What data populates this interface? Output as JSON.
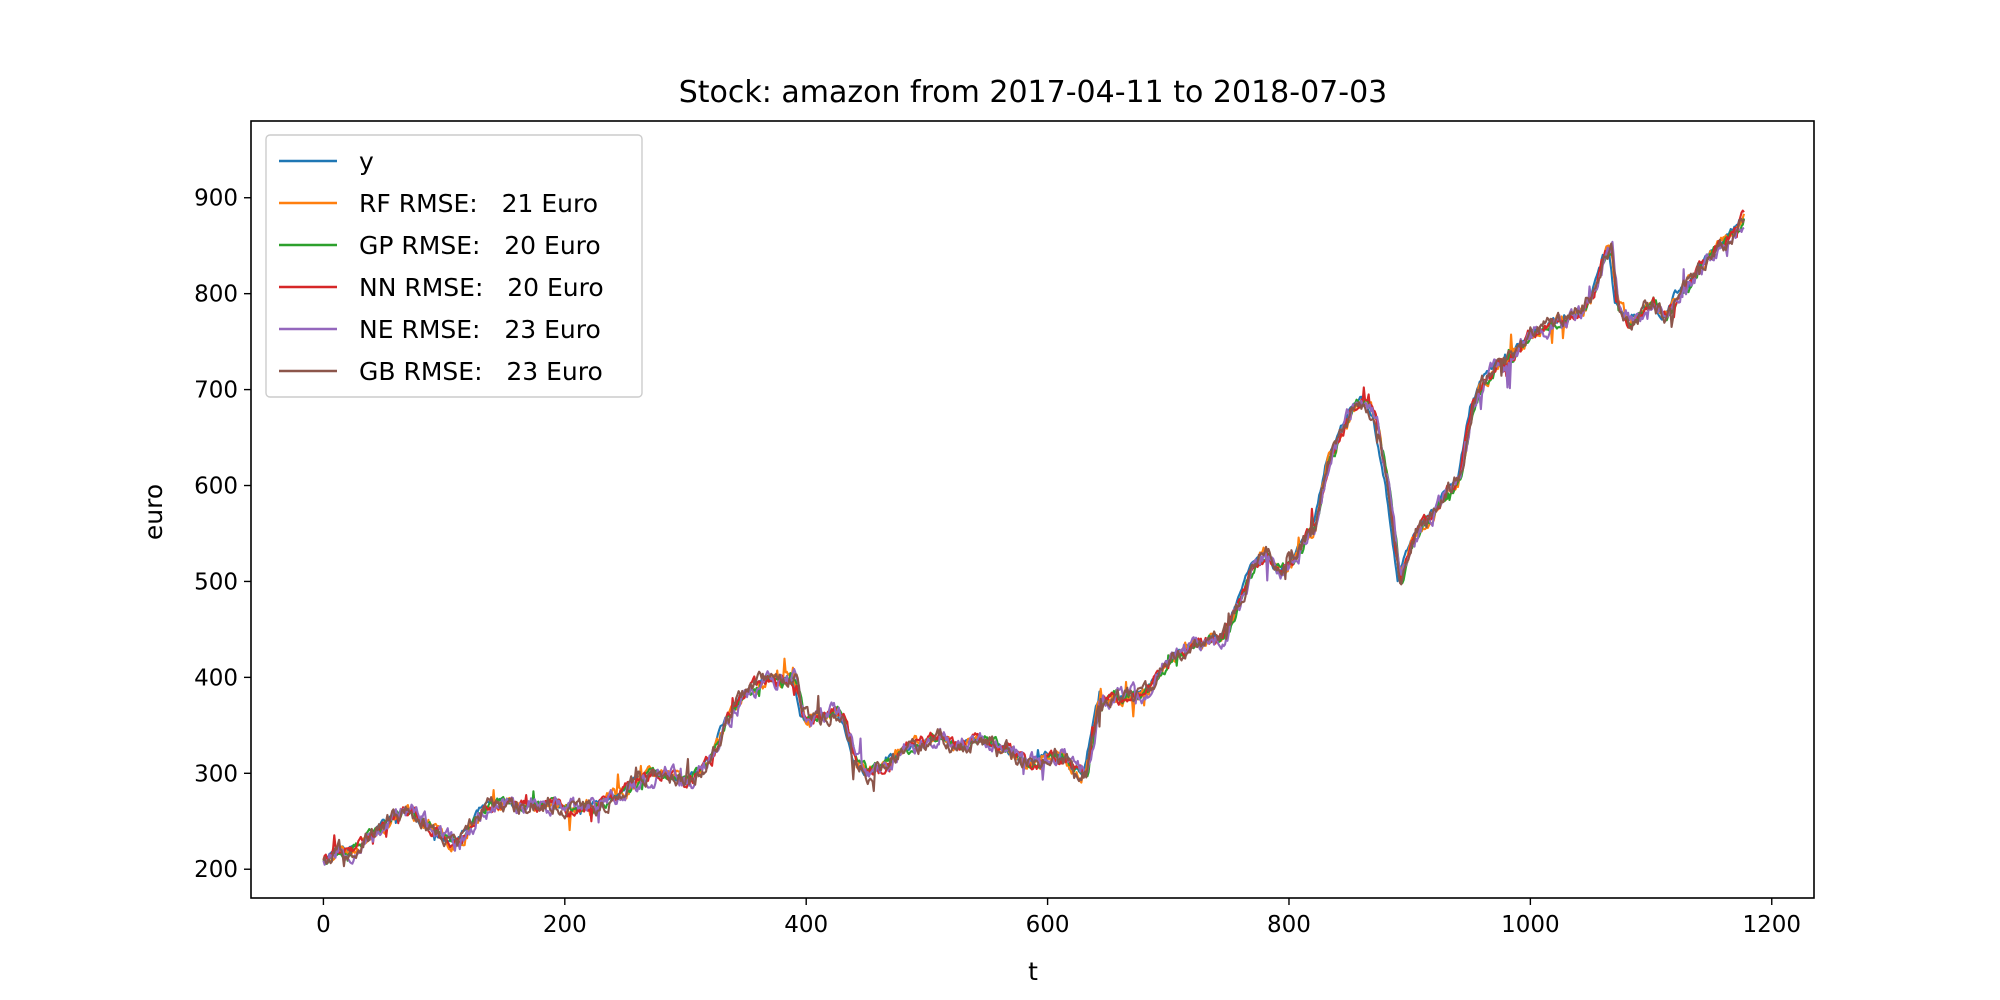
{
  "chart_data": {
    "type": "line",
    "title": "Stock: amazon from 2017-04-11 to 2018-07-03",
    "xlabel": "t",
    "ylabel": "euro",
    "xlim": [
      -60,
      1235
    ],
    "ylim": [
      170,
      980
    ],
    "xticks": [
      0,
      200,
      400,
      600,
      800,
      1000,
      1200
    ],
    "yticks": [
      200,
      300,
      400,
      500,
      600,
      700,
      800,
      900
    ],
    "grid": false,
    "legend_position": "top-left",
    "base_curve": {
      "x": [
        0,
        10,
        20,
        30,
        40,
        50,
        60,
        70,
        80,
        90,
        100,
        110,
        120,
        130,
        140,
        150,
        160,
        170,
        180,
        190,
        200,
        220,
        240,
        260,
        280,
        300,
        320,
        330,
        340,
        350,
        360,
        370,
        380,
        390,
        395,
        400,
        410,
        420,
        430,
        440,
        450,
        460,
        470,
        480,
        490,
        500,
        510,
        520,
        530,
        540,
        550,
        560,
        570,
        580,
        590,
        600,
        610,
        620,
        630,
        640,
        650,
        660,
        680,
        700,
        720,
        740,
        750,
        760,
        770,
        780,
        790,
        800,
        810,
        820,
        830,
        840,
        850,
        860,
        870,
        880,
        890,
        900,
        910,
        920,
        930,
        940,
        950,
        960,
        970,
        980,
        990,
        1000,
        1020,
        1040,
        1050,
        1060,
        1065,
        1070,
        1080,
        1090,
        1100,
        1110,
        1120,
        1130,
        1140,
        1150,
        1160,
        1170,
        1175
      ],
      "y": [
        212,
        222,
        220,
        228,
        238,
        248,
        258,
        262,
        250,
        240,
        230,
        228,
        245,
        262,
        268,
        270,
        265,
        270,
        265,
        268,
        262,
        265,
        275,
        295,
        300,
        290,
        315,
        350,
        370,
        385,
        395,
        398,
        400,
        395,
        360,
        355,
        360,
        365,
        355,
        310,
        300,
        305,
        315,
        325,
        330,
        335,
        340,
        330,
        330,
        335,
        332,
        328,
        320,
        310,
        312,
        320,
        318,
        305,
        300,
        370,
        380,
        378,
        385,
        420,
        435,
        440,
        455,
        490,
        520,
        530,
        510,
        520,
        540,
        560,
        620,
        650,
        680,
        690,
        670,
        600,
        500,
        540,
        560,
        575,
        595,
        610,
        680,
        710,
        725,
        730,
        745,
        760,
        770,
        780,
        800,
        840,
        845,
        790,
        770,
        780,
        790,
        775,
        800,
        810,
        830,
        845,
        855,
        870,
        880
      ]
    },
    "series": [
      {
        "name": "y",
        "color": "#1f77b4",
        "rmse": null,
        "lag": 0,
        "noise": 5,
        "seed": 11
      },
      {
        "name": "RF RMSE:   21 Euro",
        "color": "#ff7f0e",
        "rmse": 21,
        "lag": 2,
        "noise": 10,
        "seed": 23
      },
      {
        "name": "GP RMSE:   20 Euro",
        "color": "#2ca02c",
        "rmse": 20,
        "lag": 3,
        "noise": 8,
        "seed": 37
      },
      {
        "name": "NN RMSE:   20 Euro",
        "color": "#d62728",
        "rmse": 20,
        "lag": 2,
        "noise": 9,
        "seed": 41
      },
      {
        "name": "NE RMSE:   23 Euro",
        "color": "#9467bd",
        "rmse": 23,
        "lag": 3,
        "noise": 13,
        "seed": 53
      },
      {
        "name": "GB RMSE:   23 Euro",
        "color": "#8c564b",
        "rmse": 23,
        "lag": 2,
        "noise": 12,
        "seed": 67
      }
    ]
  }
}
